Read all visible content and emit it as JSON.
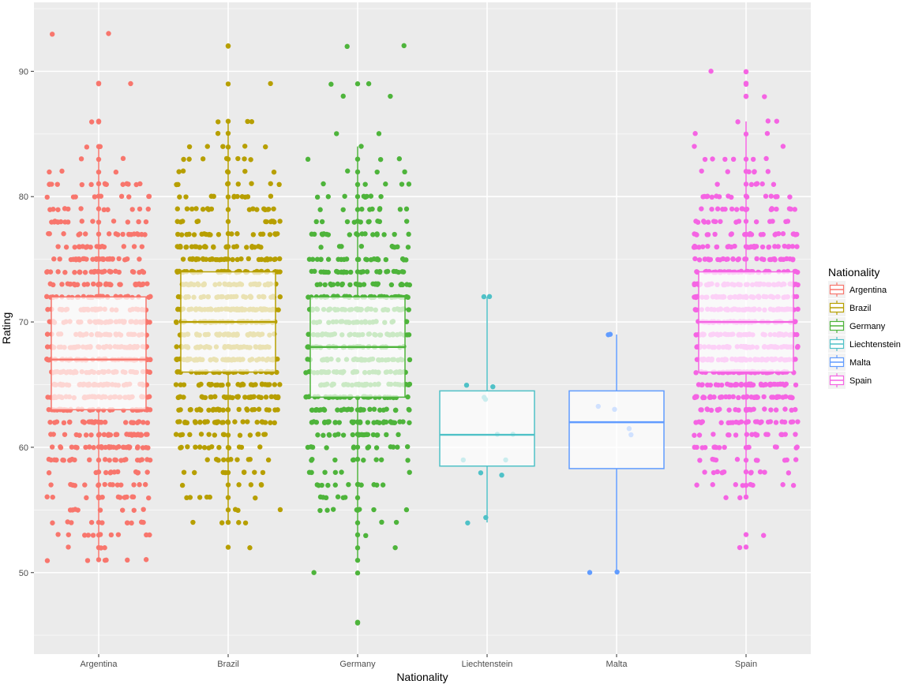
{
  "chart_data": {
    "type": "box",
    "xlabel": "Nationality",
    "ylabel": "Rating",
    "ylim": [
      43.5,
      95.5
    ],
    "y_ticks": [
      50,
      60,
      70,
      80,
      90
    ],
    "grid": true,
    "legend_title": "Nationality",
    "legend_position": "right",
    "categories": [
      "Argentina",
      "Brazil",
      "Germany",
      "Liechtenstein",
      "Malta",
      "Spain"
    ],
    "series": [
      {
        "name": "Argentina",
        "color": "#f8766d",
        "box": {
          "q1": 63,
          "median": 67,
          "q3": 72,
          "whisker_low": 51,
          "whisker_high": 84
        },
        "scatter": {
          "n": 800,
          "lo": 51,
          "hi": 84,
          "core_lo": 55,
          "core_hi": 80
        },
        "outliers": [
          93,
          93,
          89,
          89,
          89,
          86,
          86,
          86,
          51,
          51,
          52,
          53,
          54,
          54
        ]
      },
      {
        "name": "Brazil",
        "color": "#b79f00",
        "box": {
          "q1": 66,
          "median": 70,
          "q3": 74,
          "whisker_low": 54,
          "whisker_high": 86
        },
        "scatter": {
          "n": 750,
          "lo": 54,
          "hi": 86,
          "core_lo": 58,
          "core_hi": 82
        },
        "outliers": [
          92,
          92,
          89,
          89,
          52,
          52,
          54,
          54
        ]
      },
      {
        "name": "Germany",
        "color": "#4eb43b",
        "box": {
          "q1": 64,
          "median": 68,
          "q3": 72,
          "whisker_low": 51,
          "whisker_high": 84
        },
        "scatter": {
          "n": 620,
          "lo": 51,
          "hi": 86,
          "core_lo": 54,
          "core_hi": 82
        },
        "outliers": [
          92,
          92,
          89,
          89,
          89,
          88,
          88,
          46,
          46,
          50,
          50
        ]
      },
      {
        "name": "Liechtenstein",
        "color": "#4fc1c7",
        "box": {
          "q1": 58.5,
          "median": 61,
          "q3": 64.5,
          "whisker_low": 54,
          "whisker_high": 72
        },
        "scatter": {
          "n": 0,
          "lo": 54,
          "hi": 72,
          "core_lo": 54,
          "core_hi": 72
        },
        "outliers": [],
        "points": [
          72,
          72,
          65,
          64.8,
          64,
          63.8,
          61,
          61,
          59,
          59,
          58,
          57.8,
          54.4,
          54
        ]
      },
      {
        "name": "Malta",
        "color": "#619cff",
        "box": {
          "q1": 58.3,
          "median": 62,
          "q3": 64.5,
          "whisker_low": 50,
          "whisker_high": 69
        },
        "scatter": {
          "n": 0,
          "lo": 50,
          "hi": 69,
          "core_lo": 50,
          "core_hi": 69
        },
        "outliers": [],
        "points": [
          69,
          69,
          63.3,
          63,
          61.5,
          61,
          50,
          50
        ]
      },
      {
        "name": "Spain",
        "color": "#f564e3",
        "box": {
          "q1": 66,
          "median": 70,
          "q3": 74,
          "whisker_low": 56,
          "whisker_high": 86
        },
        "scatter": {
          "n": 820,
          "lo": 56,
          "hi": 86,
          "core_lo": 58,
          "core_hi": 83
        },
        "outliers": [
          90,
          90,
          90,
          89,
          89,
          88,
          88,
          88,
          53,
          53,
          52,
          52
        ]
      }
    ]
  }
}
